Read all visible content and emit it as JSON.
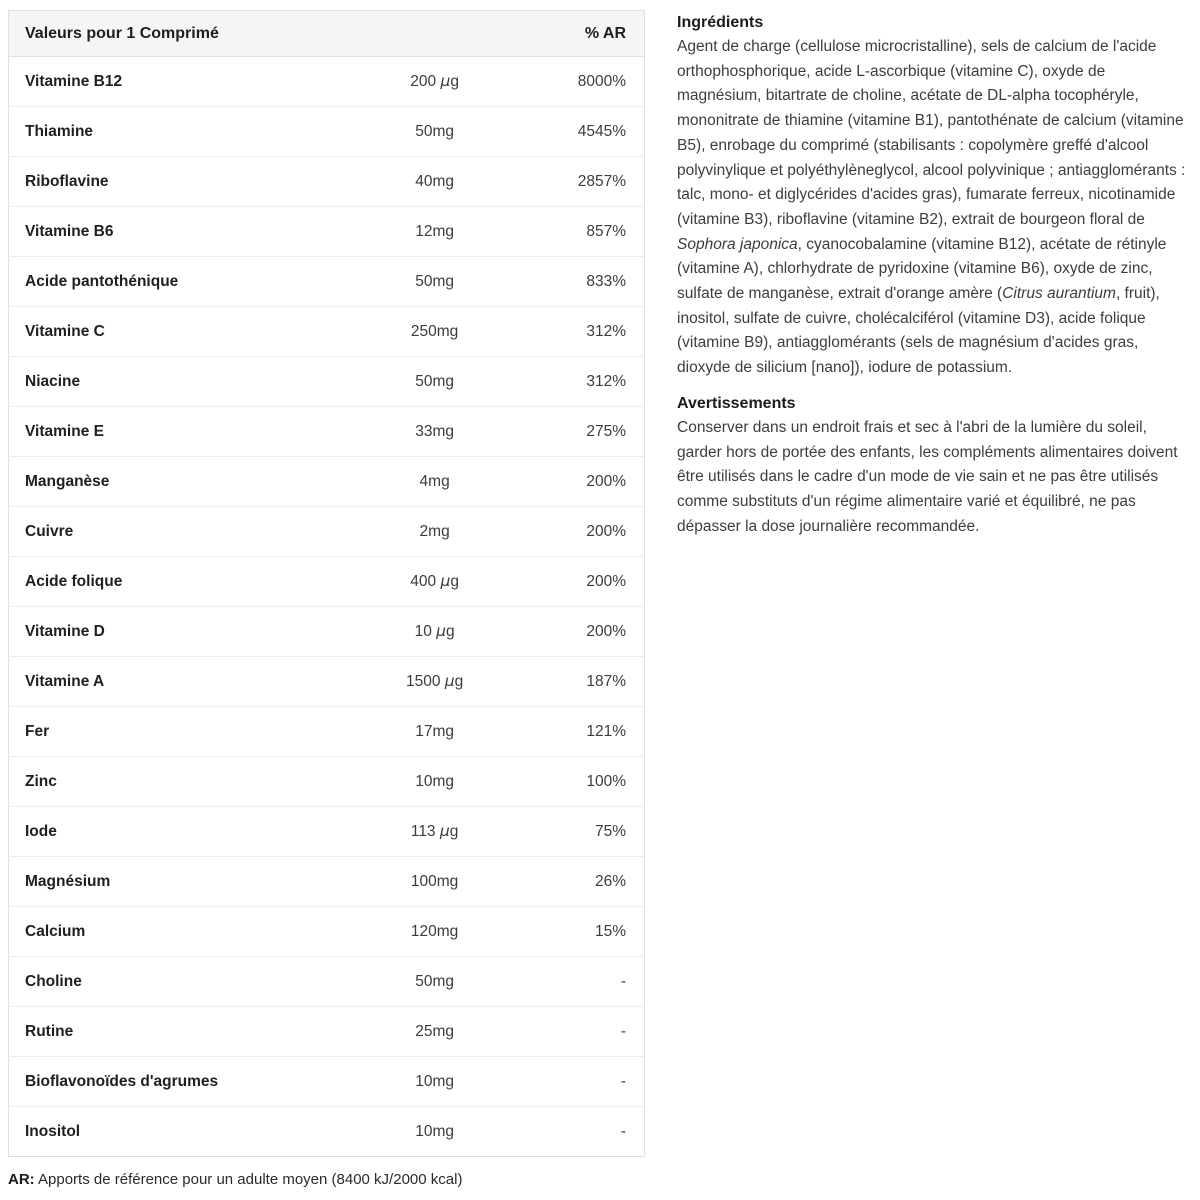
{
  "table": {
    "header": {
      "title": "Valeurs pour 1 Comprimé",
      "ar_label": "% AR"
    },
    "rows": [
      {
        "name": "Vitamine B12",
        "amount": "200 µg",
        "ar": "8000%"
      },
      {
        "name": "Thiamine",
        "amount": "50mg",
        "ar": "4545%"
      },
      {
        "name": "Riboflavine",
        "amount": "40mg",
        "ar": "2857%"
      },
      {
        "name": "Vitamine B6",
        "amount": "12mg",
        "ar": "857%"
      },
      {
        "name": "Acide pantothénique",
        "amount": "50mg",
        "ar": "833%"
      },
      {
        "name": "Vitamine C",
        "amount": "250mg",
        "ar": "312%"
      },
      {
        "name": "Niacine",
        "amount": "50mg",
        "ar": "312%"
      },
      {
        "name": "Vitamine E",
        "amount": "33mg",
        "ar": "275%"
      },
      {
        "name": "Manganèse",
        "amount": "4mg",
        "ar": "200%"
      },
      {
        "name": "Cuivre",
        "amount": "2mg",
        "ar": "200%"
      },
      {
        "name": "Acide folique",
        "amount": "400 µg",
        "ar": "200%"
      },
      {
        "name": "Vitamine D",
        "amount": "10 µg",
        "ar": "200%"
      },
      {
        "name": "Vitamine A",
        "amount": "1500 µg",
        "ar": "187%"
      },
      {
        "name": "Fer",
        "amount": "17mg",
        "ar": "121%"
      },
      {
        "name": "Zinc",
        "amount": "10mg",
        "ar": "100%"
      },
      {
        "name": "Iode",
        "amount": "113 µg",
        "ar": "75%"
      },
      {
        "name": "Magnésium",
        "amount": "100mg",
        "ar": "26%"
      },
      {
        "name": "Calcium",
        "amount": "120mg",
        "ar": "15%"
      },
      {
        "name": "Choline",
        "amount": "50mg",
        "ar": "-"
      },
      {
        "name": "Rutine",
        "amount": "25mg",
        "ar": "-"
      },
      {
        "name": "Bioflavonoïdes d'agrumes",
        "amount": "10mg",
        "ar": "-"
      },
      {
        "name": "Inositol",
        "amount": "10mg",
        "ar": "-"
      }
    ]
  },
  "footnote_segments": [
    {
      "text": "AR:",
      "bold": true
    },
    {
      "text": " Apports de référence pour un adulte moyen (8400 kJ/2000 kcal)",
      "bold": false
    }
  ],
  "right_column": {
    "ingredients_title": "Ingrédients",
    "ingredients_segments": [
      {
        "text": "Agent de charge (cellulose microcristalline), sels de calcium de l'acide orthophosphorique, acide L-ascorbique (vitamine C), oxyde de magnésium, bitartrate de choline, acétate de DL-alpha tocophéryle, mononitrate de thiamine (vitamine B1), pantothénate de calcium (vitamine B5), enrobage du comprimé (stabilisants : copolymère greffé d'alcool polyvinylique et polyéthylèneglycol, alcool polyvinique ; antiagglomérants : talc, mono- et diglycérides d'acides gras), fumarate ferreux, nicotinamide (vitamine B3), riboflavine (vitamine B2), extrait de bourgeon floral de ",
        "italic": false
      },
      {
        "text": "Sophora japonica",
        "italic": true
      },
      {
        "text": ", cyanocobalamine (vitamine B12), acétate de rétinyle (vitamine A), chlorhydrate de pyridoxine (vitamine B6), oxyde de zinc, sulfate de manganèse, extrait d'orange amère (",
        "italic": false
      },
      {
        "text": "Citrus aurantium",
        "italic": true
      },
      {
        "text": ", fruit), inositol, sulfate de cuivre, cholécalciférol (vitamine D3), acide folique (vitamine B9), antiagglomérants (sels de magnésium d'acides gras, dioxyde de silicium [nano]), iodure de potassium.",
        "italic": false
      }
    ],
    "warnings_title": "Avertissements",
    "warnings_text": "Conserver dans un endroit frais et sec à l'abri de la lumière du soleil, garder hors de portée des enfants, les compléments alimentaires doivent être utilisés dans le cadre d'un mode de vie sain et ne pas être utilisés comme substituts d'un régime alimentaire varié et équilibré, ne pas dépasser la dose journalière recommandée."
  },
  "colors": {
    "header_bg": "#f5f5f6",
    "outer_border": "#e0e0e0",
    "row_border": "#ededed",
    "text_dark": "#1f1f1f",
    "text_body": "#3d3d3d"
  }
}
